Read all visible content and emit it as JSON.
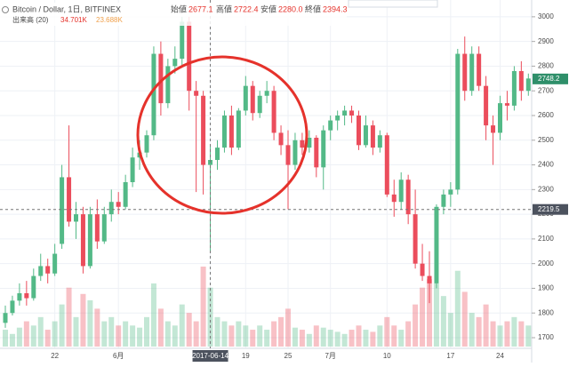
{
  "header": {
    "symbol": "Bitcoin / Dollar, 1日, BITFINEX",
    "open_label": "始値",
    "open": 2677.1,
    "high_label": "高値",
    "high": 2722.4,
    "low_label": "安値",
    "low": {
      "value": 2280,
      "label": "2280.0"
    },
    "close_label": "終値",
    "close": 2394.3,
    "volume_label": "出来高 (20)",
    "volume_value": "34.701K",
    "volume_ma": "23.688K"
  },
  "chart_data": {
    "type": "candlestick",
    "categories": [
      null,
      null,
      null,
      null,
      null,
      null,
      null,
      "22",
      null,
      null,
      null,
      null,
      null,
      null,
      null,
      null,
      "6月",
      null,
      null,
      null,
      null,
      null,
      null,
      null,
      null,
      null,
      null,
      null,
      null,
      "2017-06-14",
      null,
      null,
      null,
      null,
      "19",
      null,
      null,
      null,
      null,
      null,
      "25",
      null,
      null,
      null,
      null,
      null,
      "7月",
      null,
      null,
      null,
      null,
      null,
      null,
      null,
      "10",
      null,
      null,
      null,
      null,
      null,
      null,
      null,
      null,
      "17",
      null,
      null,
      null,
      null,
      null,
      null,
      "24",
      null,
      null,
      null,
      null
    ],
    "open": [
      1760,
      1800,
      1850,
      1880,
      1860,
      1950,
      1990,
      1960,
      2080,
      2350,
      2170,
      2200,
      1990,
      2200,
      2090,
      2200,
      2250,
      2230,
      2330,
      2430,
      2450,
      2520,
      2850,
      2650,
      2800,
      2830,
      2980,
      2700,
      2680,
      2400,
      2420,
      2470,
      2600,
      2470,
      2620,
      2720,
      2610,
      2680,
      2700,
      2530,
      2480,
      2400,
      2500,
      2470,
      2510,
      2390,
      2540,
      2580,
      2600,
      2620,
      2600,
      2480,
      2560,
      2470,
      2520,
      2280,
      2250,
      2340,
      2200,
      2000,
      1950,
      1920,
      2230,
      2280,
      2300,
      2850,
      2700,
      2850,
      2720,
      2560,
      2530,
      2650,
      2640,
      2780,
      2700
    ],
    "high": [
      1830,
      1870,
      1920,
      1930,
      1980,
      2040,
      2020,
      2080,
      2400,
      2560,
      2250,
      2230,
      2230,
      2260,
      2230,
      2300,
      2290,
      2360,
      2470,
      2500,
      2540,
      2880,
      2900,
      2830,
      2880,
      3000,
      3000,
      2740,
      2700,
      2480,
      2500,
      2620,
      2640,
      2630,
      2760,
      2740,
      2700,
      2740,
      2720,
      2560,
      2540,
      2530,
      2530,
      2540,
      2520,
      2560,
      2600,
      2620,
      2640,
      2640,
      2620,
      2600,
      2580,
      2540,
      2530,
      2340,
      2370,
      2360,
      2300,
      2080,
      2050,
      2240,
      2300,
      2330,
      2870,
      2920,
      2880,
      2880,
      2760,
      2600,
      2680,
      2700,
      2800,
      2820,
      2770
    ],
    "low": [
      1740,
      1790,
      1830,
      1830,
      1850,
      1930,
      1920,
      1950,
      2060,
      2150,
      2100,
      1960,
      1980,
      2060,
      2080,
      2170,
      2200,
      2220,
      2310,
      2380,
      2430,
      2500,
      2600,
      2630,
      2770,
      2800,
      2620,
      2290,
      2280,
      2050,
      2380,
      2450,
      2440,
      2460,
      2600,
      2580,
      2590,
      2650,
      2500,
      2440,
      2220,
      2380,
      2440,
      2450,
      2350,
      2300,
      2500,
      2540,
      2560,
      2570,
      2460,
      2470,
      2440,
      2450,
      2270,
      2190,
      2220,
      2160,
      1980,
      1930,
      1840,
      1900,
      2200,
      2230,
      2280,
      2660,
      2680,
      2700,
      2500,
      2400,
      2500,
      2580,
      2620,
      2660,
      2680
    ],
    "close": [
      1800,
      1850,
      1880,
      1860,
      1950,
      1990,
      1960,
      2040,
      2350,
      2170,
      2200,
      1990,
      2200,
      2090,
      2200,
      2250,
      2230,
      2330,
      2430,
      2450,
      2520,
      2850,
      2650,
      2800,
      2830,
      2980,
      2700,
      2680,
      2400,
      2420,
      2470,
      2600,
      2470,
      2620,
      2720,
      2610,
      2680,
      2700,
      2530,
      2480,
      2400,
      2500,
      2470,
      2510,
      2390,
      2540,
      2580,
      2600,
      2620,
      2600,
      2480,
      2560,
      2470,
      2520,
      2280,
      2250,
      2340,
      2200,
      2000,
      1950,
      1920,
      2230,
      2280,
      2300,
      2850,
      2700,
      2850,
      2720,
      2560,
      2530,
      2650,
      2640,
      2780,
      2700,
      2750
    ],
    "volume": [
      8,
      6,
      9,
      12,
      10,
      14,
      8,
      12,
      20,
      28,
      14,
      25,
      22,
      18,
      12,
      14,
      10,
      12,
      10,
      9,
      14,
      30,
      18,
      12,
      10,
      20,
      16,
      12,
      38,
      28,
      14,
      12,
      10,
      12,
      10,
      8,
      10,
      8,
      12,
      14,
      18,
      9,
      8,
      6,
      10,
      9,
      8,
      7,
      6,
      8,
      10,
      8,
      7,
      10,
      14,
      10,
      8,
      12,
      20,
      28,
      32,
      30,
      24,
      16,
      36,
      26,
      16,
      14,
      20,
      12,
      10,
      12,
      14,
      12,
      10
    ],
    "up_color": "#53b987",
    "down_color": "#eb4d5c",
    "ylim": [
      1664,
      3068
    ],
    "yticks": [
      1700,
      1800,
      1900,
      2000,
      2100,
      2200,
      2300,
      2400,
      2500,
      2600,
      2700,
      2800,
      2900,
      3000
    ],
    "last_price": 2748.2,
    "crosshair_price": 2219.5,
    "crosshair_index": 29,
    "grid": true
  }
}
